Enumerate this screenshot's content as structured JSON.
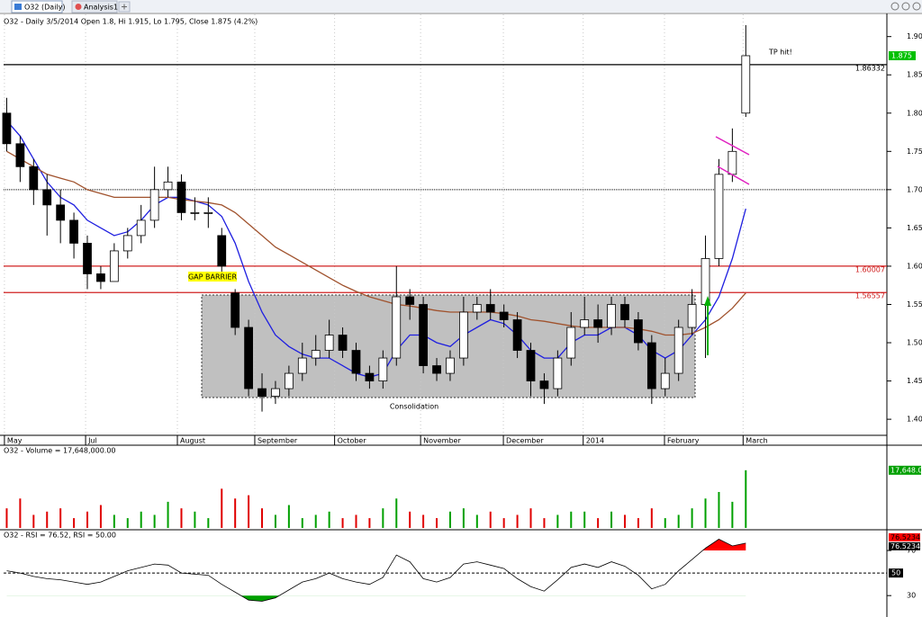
{
  "tabs": [
    "O32 (Daily)",
    "Analysis1"
  ],
  "chart_data": [
    {
      "type": "candlestick",
      "title": "O32 - Daily 3/5/2014 Open 1.8, Hi 1.915, Lo 1.795, Close 1.875 (4.2%)",
      "xlim": [
        -0.5,
        65.5
      ],
      "xticks": [
        {
          "value": -0.17,
          "label": "May"
        },
        {
          "value": 5.87,
          "label": "Jul"
        },
        {
          "value": 12.7,
          "label": "August"
        },
        {
          "value": 18.46,
          "label": "September"
        },
        {
          "value": 24.4,
          "label": "October"
        },
        {
          "value": 30.8,
          "label": "November"
        },
        {
          "value": 36.96,
          "label": "December"
        },
        {
          "value": 42.9,
          "label": "2014"
        },
        {
          "value": 48.95,
          "label": "February"
        },
        {
          "value": 54.8,
          "label": "March"
        }
      ],
      "ylim": [
        1.379,
        1.929
      ],
      "yticks": [
        {
          "value": 1.4,
          "label": "1.40"
        },
        {
          "value": 1.45,
          "label": "1.45"
        },
        {
          "value": 1.5,
          "label": "1.50"
        },
        {
          "value": 1.55,
          "label": "1.55"
        },
        {
          "value": 1.6,
          "label": "1.60"
        },
        {
          "value": 1.65,
          "label": "1.65"
        },
        {
          "value": 1.7,
          "label": "1.70"
        },
        {
          "value": 1.75,
          "label": "1.75"
        },
        {
          "value": 1.8,
          "label": "1.80"
        },
        {
          "value": 1.85,
          "label": "1.85"
        },
        {
          "value": 1.9,
          "label": "1.90"
        }
      ],
      "grid": true,
      "up_color": "#ffffff",
      "down_color": "#000000",
      "last_color": "#00c000",
      "open": [
        1.8,
        1.76,
        1.73,
        1.7,
        1.68,
        1.66,
        1.63,
        1.59,
        1.58,
        1.62,
        1.64,
        1.66,
        1.7,
        1.71,
        1.67,
        1.67,
        1.64,
        1.565,
        1.52,
        1.44,
        1.43,
        1.44,
        1.46,
        1.48,
        1.49,
        1.51,
        1.49,
        1.46,
        1.45,
        1.48,
        1.56,
        1.55,
        1.47,
        1.46,
        1.48,
        1.54,
        1.55,
        1.54,
        1.53,
        1.49,
        1.45,
        1.44,
        1.48,
        1.52,
        1.53,
        1.52,
        1.55,
        1.53,
        1.5,
        1.44,
        1.46,
        1.52,
        1.55,
        1.61,
        1.72,
        1.8
      ],
      "high": [
        1.82,
        1.77,
        1.74,
        1.72,
        1.7,
        1.67,
        1.64,
        1.6,
        1.63,
        1.65,
        1.68,
        1.73,
        1.73,
        1.72,
        1.69,
        1.69,
        1.65,
        1.57,
        1.53,
        1.46,
        1.45,
        1.47,
        1.5,
        1.51,
        1.53,
        1.52,
        1.5,
        1.47,
        1.49,
        1.6,
        1.57,
        1.56,
        1.48,
        1.49,
        1.56,
        1.56,
        1.57,
        1.55,
        1.54,
        1.5,
        1.46,
        1.49,
        1.54,
        1.56,
        1.55,
        1.56,
        1.56,
        1.54,
        1.51,
        1.48,
        1.53,
        1.57,
        1.64,
        1.74,
        1.78,
        1.915
      ],
      "low": [
        1.75,
        1.71,
        1.68,
        1.64,
        1.63,
        1.61,
        1.57,
        1.57,
        1.58,
        1.61,
        1.63,
        1.65,
        1.69,
        1.66,
        1.66,
        1.65,
        1.59,
        1.51,
        1.43,
        1.41,
        1.42,
        1.43,
        1.45,
        1.47,
        1.48,
        1.48,
        1.45,
        1.44,
        1.44,
        1.47,
        1.53,
        1.46,
        1.45,
        1.45,
        1.47,
        1.53,
        1.53,
        1.52,
        1.48,
        1.43,
        1.42,
        1.43,
        1.47,
        1.51,
        1.5,
        1.51,
        1.52,
        1.49,
        1.42,
        1.43,
        1.45,
        1.51,
        1.48,
        1.6,
        1.71,
        1.795
      ],
      "close": [
        1.76,
        1.73,
        1.7,
        1.68,
        1.66,
        1.63,
        1.59,
        1.58,
        1.62,
        1.64,
        1.66,
        1.7,
        1.71,
        1.67,
        1.67,
        1.67,
        1.6,
        1.52,
        1.44,
        1.43,
        1.44,
        1.46,
        1.48,
        1.49,
        1.51,
        1.49,
        1.46,
        1.45,
        1.48,
        1.56,
        1.55,
        1.47,
        1.46,
        1.48,
        1.54,
        1.55,
        1.54,
        1.53,
        1.49,
        1.45,
        1.44,
        1.48,
        1.52,
        1.53,
        1.52,
        1.55,
        1.53,
        1.5,
        1.44,
        1.46,
        1.52,
        1.55,
        1.61,
        1.72,
        1.75,
        1.875
      ],
      "series": [
        {
          "color": "#1f1fe0",
          "values": [
            1.79,
            1.77,
            1.74,
            1.71,
            1.69,
            1.68,
            1.66,
            1.65,
            1.64,
            1.645,
            1.66,
            1.68,
            1.69,
            1.69,
            1.685,
            1.68,
            1.665,
            1.63,
            1.58,
            1.54,
            1.51,
            1.495,
            1.485,
            1.48,
            1.48,
            1.47,
            1.46,
            1.455,
            1.46,
            1.49,
            1.51,
            1.51,
            1.5,
            1.495,
            1.51,
            1.52,
            1.53,
            1.525,
            1.51,
            1.49,
            1.48,
            1.48,
            1.5,
            1.51,
            1.51,
            1.52,
            1.52,
            1.51,
            1.49,
            1.48,
            1.49,
            1.51,
            1.53,
            1.56,
            1.61,
            1.675
          ]
        },
        {
          "color": "#a0522d",
          "values": [
            1.75,
            1.74,
            1.73,
            1.72,
            1.715,
            1.71,
            1.7,
            1.695,
            1.69,
            1.69,
            1.69,
            1.69,
            1.69,
            1.687,
            1.685,
            1.683,
            1.68,
            1.67,
            1.655,
            1.64,
            1.625,
            1.615,
            1.605,
            1.595,
            1.585,
            1.575,
            1.567,
            1.56,
            1.555,
            1.55,
            1.548,
            1.545,
            1.542,
            1.54,
            1.54,
            1.54,
            1.54,
            1.538,
            1.535,
            1.53,
            1.528,
            1.525,
            1.522,
            1.52,
            1.52,
            1.52,
            1.52,
            1.518,
            1.515,
            1.51,
            1.51,
            1.512,
            1.52,
            1.53,
            1.545,
            1.565
          ]
        }
      ],
      "levels": [
        {
          "value": 1.86332,
          "color": "#000000",
          "show_value": true
        },
        {
          "value": 1.7,
          "color": "#000000",
          "dotted": true
        },
        {
          "value": 1.60007,
          "color": "#d02020",
          "show_value": true
        },
        {
          "value": 1.56557,
          "color": "#d02020",
          "show_value": true
        }
      ],
      "annotations": [
        "TP hit!",
        "GAP BARRIER",
        "Consolidation"
      ]
    },
    {
      "type": "bar",
      "title": "O32 - Volume = 17,648,000.00",
      "ylim": [
        0,
        22000
      ],
      "up_color": "#00a000",
      "down_color": "#e00000",
      "last_label": "17,648.00",
      "values": [
        6000,
        9000,
        4000,
        5000,
        6000,
        3000,
        5000,
        7000,
        4000,
        3000,
        5000,
        4000,
        8000,
        6000,
        5000,
        3000,
        12000,
        9000,
        10000,
        6000,
        4000,
        7000,
        3000,
        4000,
        5000,
        3000,
        4000,
        3000,
        6000,
        9000,
        5000,
        4000,
        3000,
        5000,
        6000,
        4000,
        5000,
        3000,
        4000,
        6000,
        3000,
        4000,
        5000,
        5000,
        3000,
        5000,
        4000,
        3000,
        6000,
        3000,
        4000,
        6000,
        9000,
        11000,
        8000,
        17648
      ]
    },
    {
      "type": "line",
      "title": "O32 - RSI = 76.52, RSI = 50.00",
      "ylim": [
        11,
        86
      ],
      "yticks": [
        30,
        70
      ],
      "threshold": 50,
      "color": "#000000",
      "over_color": "#ff0000",
      "under_color": "#00a000",
      "values": [
        52,
        50,
        47,
        45,
        44,
        42,
        40,
        42,
        47,
        52,
        55,
        58,
        57,
        50,
        49,
        48,
        40,
        33,
        26,
        25,
        28,
        35,
        42,
        45,
        50,
        45,
        42,
        40,
        46,
        66,
        60,
        45,
        42,
        46,
        58,
        60,
        57,
        54,
        45,
        38,
        34,
        44,
        55,
        58,
        55,
        60,
        56,
        48,
        36,
        40,
        52,
        62,
        72,
        80,
        74,
        76.5234
      ]
    }
  ]
}
